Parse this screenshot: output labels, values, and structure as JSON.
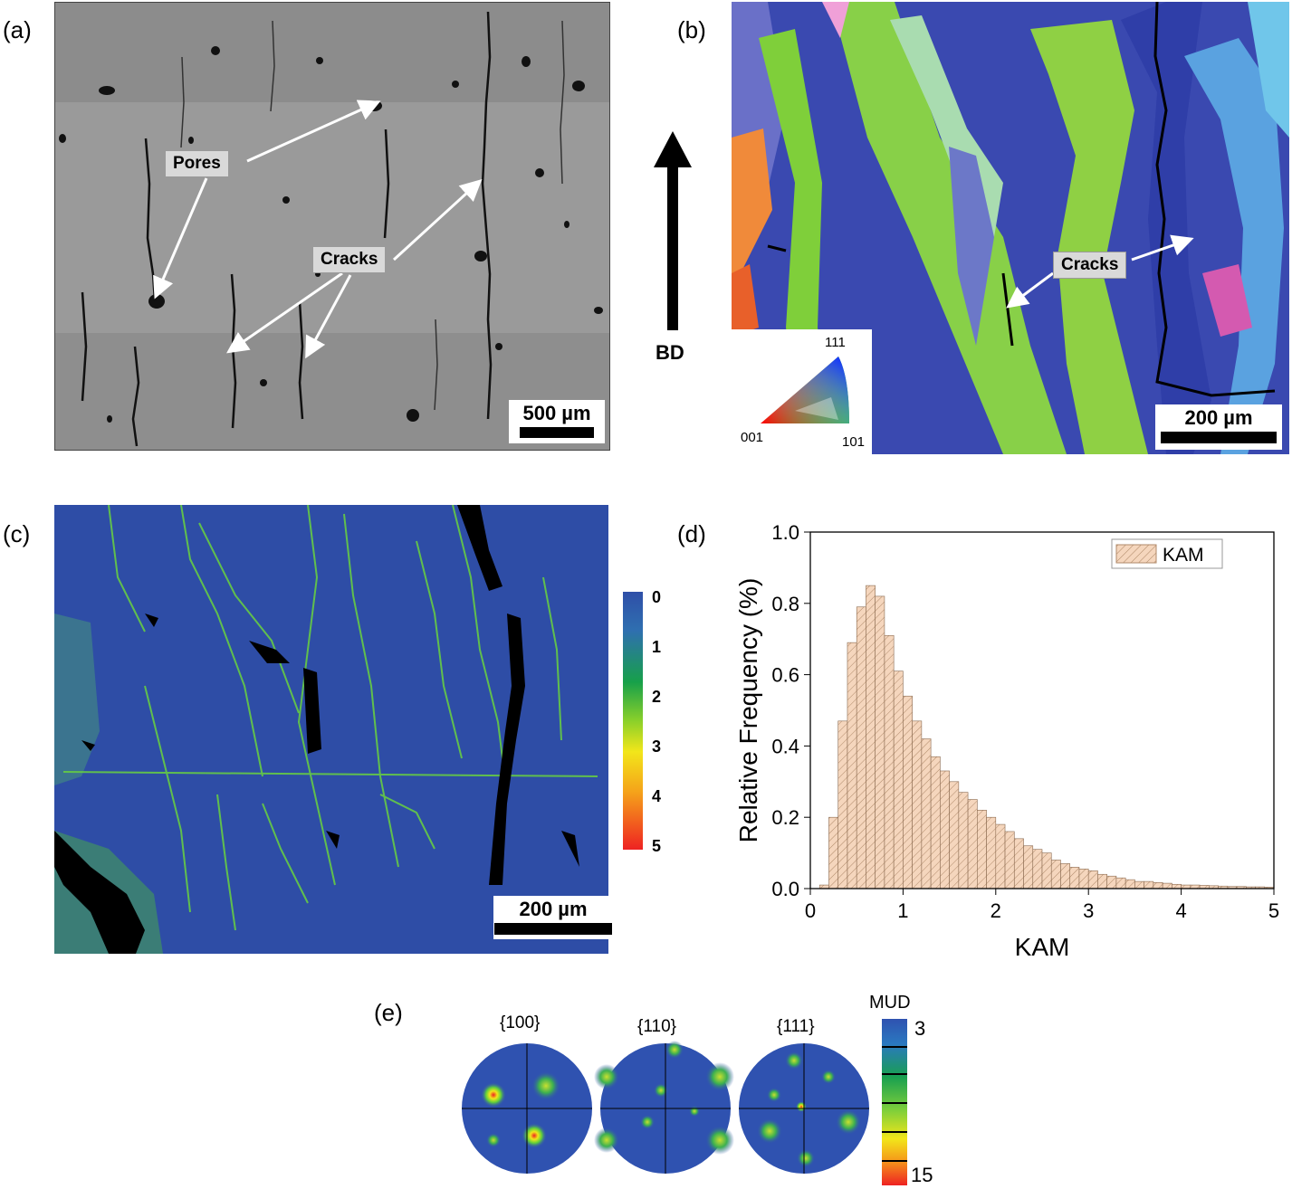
{
  "panels": {
    "a": {
      "letter": "(a)",
      "labels": {
        "pores": "Pores",
        "cracks": "Cracks"
      },
      "scalebar": "500 µm"
    },
    "b": {
      "letter": "(b)",
      "build_direction": "BD",
      "labels": {
        "cracks": "Cracks"
      },
      "ipf_key": {
        "top": "111",
        "left": "001",
        "right": "101"
      },
      "scalebar": "200 µm"
    },
    "c": {
      "letter": "(c)",
      "colorbar_ticks": [
        "0",
        "1",
        "2",
        "3",
        "4",
        "5"
      ],
      "scalebar": "200 µm"
    },
    "d": {
      "letter": "(d)"
    },
    "e": {
      "letter": "(e)",
      "pole_figures": [
        "{100}",
        "{110}",
        "{111}"
      ],
      "colorbar": {
        "title": "MUD",
        "max": "15",
        "min": "3"
      }
    }
  },
  "chart_data": {
    "type": "bar",
    "title": "",
    "xlabel": "KAM",
    "ylabel": "Relative Frequency (%)",
    "xlim": [
      0,
      5
    ],
    "ylim": [
      0,
      1.0
    ],
    "xticks": [
      "0",
      "1",
      "2",
      "3",
      "4",
      "5"
    ],
    "yticks": [
      "0.0",
      "0.2",
      "0.4",
      "0.6",
      "0.8",
      "1.0"
    ],
    "legend": {
      "position": "top-right",
      "entries": [
        "KAM"
      ]
    },
    "bin_width": 0.1,
    "series": [
      {
        "name": "KAM",
        "color": "#f5d6bd",
        "x": [
          0.05,
          0.15,
          0.25,
          0.35,
          0.45,
          0.55,
          0.65,
          0.75,
          0.85,
          0.95,
          1.05,
          1.15,
          1.25,
          1.35,
          1.45,
          1.55,
          1.65,
          1.75,
          1.85,
          1.95,
          2.05,
          2.15,
          2.25,
          2.35,
          2.45,
          2.55,
          2.65,
          2.75,
          2.85,
          2.95,
          3.05,
          3.15,
          3.25,
          3.35,
          3.45,
          3.55,
          3.65,
          3.75,
          3.85,
          3.95,
          4.05,
          4.15,
          4.25,
          4.35,
          4.45,
          4.55,
          4.65,
          4.75,
          4.85,
          4.95
        ],
        "values": [
          0.0,
          0.01,
          0.2,
          0.47,
          0.69,
          0.79,
          0.85,
          0.82,
          0.71,
          0.61,
          0.54,
          0.47,
          0.42,
          0.37,
          0.33,
          0.3,
          0.27,
          0.25,
          0.22,
          0.2,
          0.18,
          0.16,
          0.14,
          0.12,
          0.11,
          0.1,
          0.08,
          0.07,
          0.06,
          0.055,
          0.05,
          0.04,
          0.035,
          0.03,
          0.025,
          0.02,
          0.02,
          0.017,
          0.015,
          0.012,
          0.01,
          0.01,
          0.009,
          0.008,
          0.007,
          0.006,
          0.006,
          0.005,
          0.005,
          0.004
        ]
      }
    ]
  }
}
